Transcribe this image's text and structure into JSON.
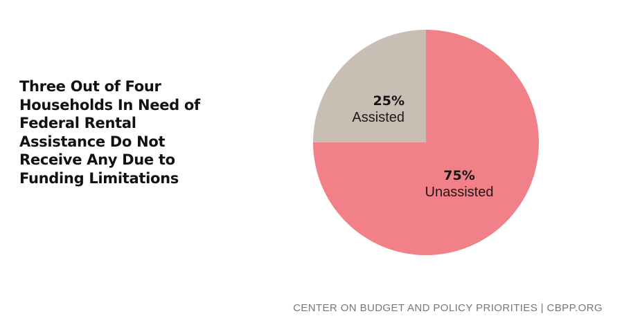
{
  "chart_data": {
    "type": "pie",
    "title": "Three Out of Four Households In Need of Federal Rental Assistance Do Not Receive Any Due to Funding Limitations",
    "title_lines": [
      "Three Out of Four",
      "Households In Need of",
      "Federal Rental",
      "Assistance Do Not",
      "Receive Any Due to",
      "Funding Limitations"
    ],
    "slices": [
      {
        "label": "Assisted",
        "value": 25,
        "display": "25%",
        "color": "#c9beb3"
      },
      {
        "label": "Unassisted",
        "value": 75,
        "display": "75%",
        "color": "#f28088"
      }
    ],
    "start_angle": "12 o'clock",
    "direction": "counterclockwise"
  },
  "footer": {
    "source": "CENTER ON BUDGET AND POLICY PRIORITIES | CBPP.ORG"
  }
}
